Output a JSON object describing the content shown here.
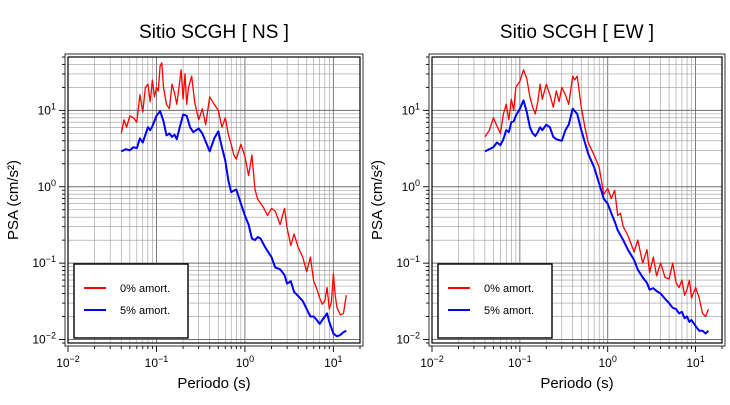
{
  "chart_data": [
    {
      "type": "line",
      "title": "Sitio SCGH [ NS ]",
      "xlabel": "Periodo (s)",
      "ylabel": "PSA (cm/s²)",
      "xscale": "log",
      "yscale": "log",
      "xlim": [
        0.01,
        20
      ],
      "ylim": [
        0.009,
        50
      ],
      "grid": true,
      "legend_position": "bottom-left",
      "x_ticks": [
        {
          "base": "10",
          "exp": "−2"
        },
        {
          "base": "10",
          "exp": "−1"
        },
        {
          "base": "10",
          "exp": "0"
        },
        {
          "base": "10",
          "exp": "1"
        }
      ],
      "y_ticks": [
        {
          "base": "10",
          "exp": "−2"
        },
        {
          "base": "10",
          "exp": "−1"
        },
        {
          "base": "10",
          "exp": "0"
        },
        {
          "base": "10",
          "exp": "1"
        }
      ],
      "series": [
        {
          "name": "0% amort.",
          "color": "#ff0000",
          "x": [
            0.04,
            0.043,
            0.046,
            0.05,
            0.055,
            0.06,
            0.065,
            0.07,
            0.075,
            0.08,
            0.085,
            0.09,
            0.095,
            0.1,
            0.105,
            0.11,
            0.115,
            0.12,
            0.13,
            0.14,
            0.15,
            0.16,
            0.17,
            0.18,
            0.19,
            0.2,
            0.21,
            0.22,
            0.23,
            0.25,
            0.27,
            0.3,
            0.33,
            0.36,
            0.4,
            0.45,
            0.5,
            0.55,
            0.6,
            0.65,
            0.7,
            0.75,
            0.8,
            0.9,
            1.0,
            1.1,
            1.2,
            1.3,
            1.4,
            1.6,
            1.8,
            2.0,
            2.2,
            2.5,
            2.8,
            3.0,
            3.3,
            3.6,
            4.0,
            4.5,
            5.0,
            5.5,
            6.0,
            6.5,
            7.0,
            7.5,
            8.0,
            8.5,
            9.0,
            9.5,
            10.0,
            10.5,
            11.0,
            12.0,
            13.0,
            14.0
          ],
          "y": [
            5.0,
            7.5,
            6.0,
            8.5,
            8.0,
            7.0,
            16.0,
            9.5,
            20.0,
            22.0,
            13.0,
            25.0,
            15.0,
            20.0,
            18.0,
            38.0,
            42.0,
            20.0,
            12.0,
            10.5,
            22.0,
            17.0,
            12.0,
            20.0,
            34.0,
            14.0,
            30.0,
            12.0,
            20.0,
            28.0,
            13.0,
            7.5,
            10.5,
            6.5,
            15.0,
            12.0,
            10.0,
            6.0,
            8.0,
            4.8,
            3.6,
            2.6,
            2.3,
            3.6,
            2.5,
            1.4,
            2.6,
            0.92,
            0.68,
            0.55,
            0.42,
            0.52,
            0.48,
            0.32,
            0.52,
            0.29,
            0.17,
            0.24,
            0.16,
            0.12,
            0.077,
            0.12,
            0.058,
            0.046,
            0.035,
            0.029,
            0.032,
            0.048,
            0.025,
            0.031,
            0.072,
            0.038,
            0.026,
            0.021,
            0.022,
            0.038
          ]
        },
        {
          "name": "5% amort.",
          "color": "#0000ff",
          "x": [
            0.04,
            0.045,
            0.05,
            0.055,
            0.06,
            0.065,
            0.07,
            0.075,
            0.08,
            0.085,
            0.09,
            0.1,
            0.11,
            0.12,
            0.13,
            0.14,
            0.15,
            0.16,
            0.17,
            0.18,
            0.2,
            0.22,
            0.24,
            0.26,
            0.3,
            0.33,
            0.36,
            0.4,
            0.45,
            0.5,
            0.55,
            0.6,
            0.65,
            0.7,
            0.8,
            0.9,
            1.0,
            1.1,
            1.2,
            1.3,
            1.4,
            1.5,
            1.7,
            2.0,
            2.2,
            2.5,
            2.8,
            3.0,
            3.3,
            3.6,
            4.0,
            4.5,
            5.0,
            5.5,
            6.0,
            6.5,
            7.0,
            7.5,
            8.0,
            8.5,
            9.0,
            10.0,
            11.0,
            12.0,
            13.0,
            14.0
          ],
          "y": [
            2.9,
            3.1,
            3.0,
            3.3,
            3.2,
            4.3,
            3.8,
            4.8,
            6.0,
            5.5,
            6.2,
            8.5,
            9.8,
            7.2,
            4.7,
            5.0,
            4.5,
            4.8,
            4.2,
            5.5,
            8.8,
            8.5,
            6.0,
            5.2,
            5.8,
            5.0,
            3.9,
            2.9,
            4.3,
            5.3,
            3.3,
            2.2,
            1.2,
            0.85,
            0.92,
            0.6,
            0.42,
            0.32,
            0.21,
            0.2,
            0.22,
            0.21,
            0.16,
            0.12,
            0.088,
            0.083,
            0.07,
            0.054,
            0.058,
            0.042,
            0.037,
            0.032,
            0.025,
            0.02,
            0.02,
            0.018,
            0.016,
            0.018,
            0.02,
            0.022,
            0.017,
            0.012,
            0.011,
            0.0115,
            0.0125,
            0.013
          ]
        }
      ]
    },
    {
      "type": "line",
      "title": "Sitio SCGH [ EW ]",
      "xlabel": "Periodo (s)",
      "ylabel": "PSA (cm/s²)",
      "xscale": "log",
      "yscale": "log",
      "xlim": [
        0.01,
        20
      ],
      "ylim": [
        0.009,
        50
      ],
      "grid": true,
      "legend_position": "bottom-left",
      "x_ticks": [
        {
          "base": "10",
          "exp": "−2"
        },
        {
          "base": "10",
          "exp": "−1"
        },
        {
          "base": "10",
          "exp": "0"
        },
        {
          "base": "10",
          "exp": "1"
        }
      ],
      "y_ticks": [
        {
          "base": "10",
          "exp": "−2"
        },
        {
          "base": "10",
          "exp": "−1"
        },
        {
          "base": "10",
          "exp": "0"
        },
        {
          "base": "10",
          "exp": "1"
        }
      ],
      "series": [
        {
          "name": "0% amort.",
          "color": "#ff0000",
          "x": [
            0.04,
            0.045,
            0.05,
            0.055,
            0.06,
            0.065,
            0.07,
            0.075,
            0.08,
            0.085,
            0.09,
            0.1,
            0.11,
            0.12,
            0.13,
            0.14,
            0.15,
            0.16,
            0.17,
            0.18,
            0.2,
            0.22,
            0.24,
            0.26,
            0.28,
            0.3,
            0.33,
            0.36,
            0.4,
            0.42,
            0.45,
            0.5,
            0.55,
            0.6,
            0.7,
            0.8,
            0.9,
            1.0,
            1.1,
            1.2,
            1.3,
            1.4,
            1.5,
            1.7,
            2.0,
            2.2,
            2.5,
            2.8,
            3.0,
            3.3,
            3.6,
            4.0,
            4.5,
            5.0,
            5.5,
            6.0,
            6.5,
            7.0,
            7.5,
            8.0,
            8.5,
            9.0,
            10.0,
            11.0,
            12.0,
            13.0,
            14.0
          ],
          "y": [
            4.5,
            5.5,
            8.0,
            6.2,
            5.0,
            9.0,
            12.0,
            7.5,
            14.0,
            10.0,
            20.0,
            24.0,
            34.0,
            26.0,
            15.0,
            11.0,
            9.0,
            13.0,
            22.0,
            14.0,
            22.0,
            16.0,
            11.0,
            18.0,
            13.0,
            20.0,
            16.0,
            12.0,
            28.0,
            25.0,
            28.0,
            11.0,
            6.0,
            3.8,
            2.6,
            1.8,
            0.8,
            0.95,
            0.7,
            0.9,
            0.42,
            0.45,
            0.3,
            0.23,
            0.14,
            0.2,
            0.1,
            0.15,
            0.075,
            0.12,
            0.068,
            0.1,
            0.065,
            0.062,
            0.1,
            0.055,
            0.048,
            0.06,
            0.038,
            0.045,
            0.06,
            0.035,
            0.048,
            0.035,
            0.022,
            0.02,
            0.025
          ]
        },
        {
          "name": "5% amort.",
          "color": "#0000ff",
          "x": [
            0.04,
            0.045,
            0.05,
            0.055,
            0.06,
            0.065,
            0.07,
            0.075,
            0.08,
            0.085,
            0.09,
            0.1,
            0.11,
            0.12,
            0.13,
            0.14,
            0.15,
            0.16,
            0.17,
            0.18,
            0.2,
            0.22,
            0.24,
            0.26,
            0.3,
            0.33,
            0.36,
            0.4,
            0.45,
            0.5,
            0.55,
            0.6,
            0.7,
            0.8,
            0.9,
            1.0,
            1.1,
            1.2,
            1.3,
            1.5,
            1.7,
            2.0,
            2.2,
            2.5,
            2.8,
            3.0,
            3.3,
            3.6,
            4.0,
            4.5,
            5.0,
            5.5,
            6.0,
            6.5,
            7.0,
            7.5,
            8.0,
            8.5,
            9.0,
            10.0,
            11.0,
            12.0,
            13.0,
            14.0
          ],
          "y": [
            2.9,
            3.1,
            3.3,
            3.8,
            3.5,
            4.2,
            5.5,
            5.2,
            7.0,
            7.2,
            8.5,
            10.5,
            13.5,
            9.5,
            6.0,
            5.0,
            4.6,
            5.2,
            6.0,
            5.5,
            6.5,
            6.0,
            4.5,
            4.2,
            4.0,
            5.5,
            6.5,
            10.5,
            9.0,
            5.5,
            3.8,
            2.7,
            1.8,
            1.1,
            0.7,
            0.6,
            0.45,
            0.35,
            0.27,
            0.2,
            0.15,
            0.11,
            0.082,
            0.065,
            0.055,
            0.045,
            0.047,
            0.043,
            0.04,
            0.034,
            0.03,
            0.026,
            0.025,
            0.022,
            0.023,
            0.019,
            0.02,
            0.017,
            0.018,
            0.015,
            0.013,
            0.013,
            0.012,
            0.013
          ]
        }
      ]
    }
  ]
}
